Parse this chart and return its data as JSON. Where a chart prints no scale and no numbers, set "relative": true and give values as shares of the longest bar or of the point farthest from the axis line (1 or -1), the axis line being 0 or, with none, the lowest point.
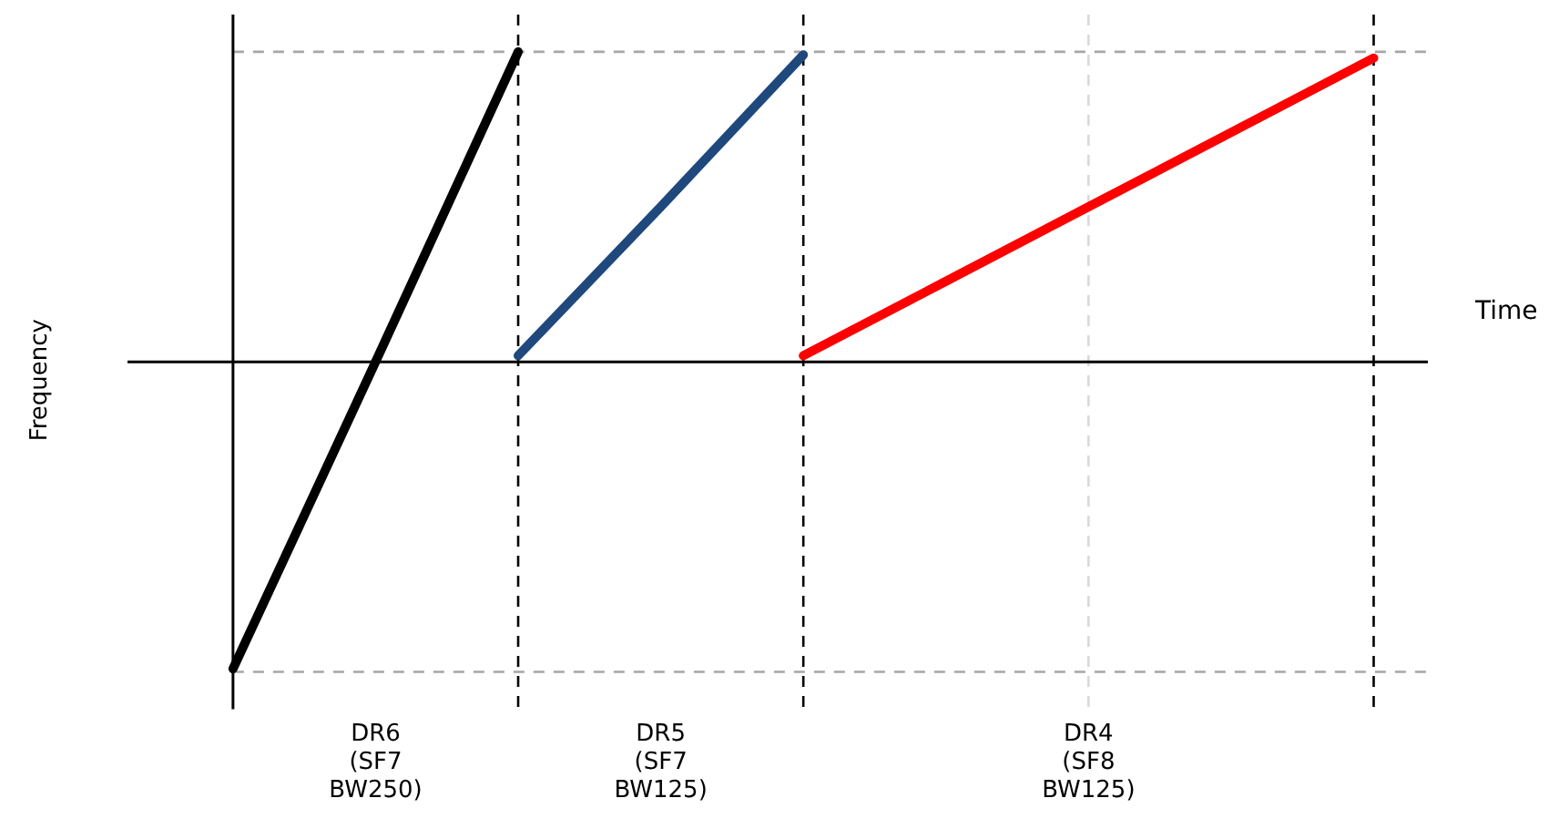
{
  "chart_data": {
    "type": "line",
    "xlabel": "Time",
    "annotations": [
      "Frequency"
    ],
    "relative": true,
    "categories": [
      null,
      "DR6\n(SF7\nBW250)",
      null,
      "DR5\n(SF7\nBW125)",
      null,
      null,
      "DR4\n(SF8\nBW125)",
      null,
      null
    ],
    "tick_labels": "x",
    "grid": "x",
    "legend": false,
    "marker": "none",
    "line_style": "solid",
    "series": [
      {
        "color": "#000000",
        "values": [
          -0.99,
          0.0,
          1,
          null,
          null,
          null,
          null,
          null,
          null
        ]
      },
      {
        "color": "#1f497d",
        "values": [
          null,
          null,
          0.02,
          0.5,
          0.99,
          null,
          null,
          null,
          null
        ]
      },
      {
        "color": "#ff0000",
        "values": [
          null,
          null,
          null,
          null,
          0.02,
          0.26,
          0.5,
          0.74,
          0.98
        ]
      }
    ],
    "ref_lines": [
      {
        "axis": "y",
        "value": 1,
        "color": "#a6a6a6",
        "line_style": "dashed"
      },
      {
        "axis": "y",
        "value": -1,
        "color": "#a6a6a6",
        "line_style": "dashed"
      }
    ]
  }
}
